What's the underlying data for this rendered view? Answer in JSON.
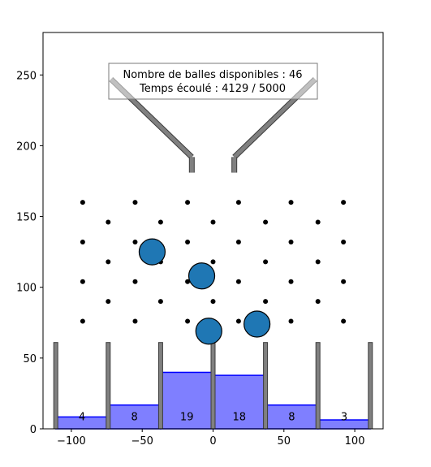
{
  "chart_data": {
    "type": "bar",
    "title": "",
    "xlabel": "",
    "ylabel": "",
    "xlim": [
      -120,
      120
    ],
    "ylim": [
      0,
      280
    ],
    "xticks": [
      -100,
      -50,
      0,
      50,
      100
    ],
    "yticks": [
      0,
      50,
      100,
      150,
      200,
      250
    ],
    "xtick_labels": [
      "−100",
      "−50",
      "0",
      "50",
      "100"
    ],
    "ytick_labels": [
      "0",
      "50",
      "100",
      "150",
      "200",
      "250"
    ],
    "grid": false,
    "status_box": {
      "line1": "Nombre de balles disponibles :  46",
      "line2": "Temps écoulé :  4129 / 5000"
    },
    "histogram": {
      "color": "#0000ff",
      "bins": [
        {
          "x0": -111,
          "x1": -74,
          "count": 4,
          "label": "4"
        },
        {
          "x0": -74,
          "x1": -37,
          "count": 8,
          "label": "8"
        },
        {
          "x0": -37,
          "x1": 0,
          "count": 19,
          "label": "19"
        },
        {
          "x0": 0,
          "x1": 37,
          "count": 18,
          "label": "18"
        },
        {
          "x0": 37,
          "x1": 74,
          "count": 8,
          "label": "8"
        },
        {
          "x0": 74,
          "x1": 111,
          "count": 3,
          "label": "3"
        }
      ]
    },
    "walls": {
      "x": [
        -111,
        -74,
        -37,
        0,
        37,
        74,
        111
      ],
      "height": 61,
      "color": "#808080"
    },
    "funnel": {
      "color": "#808080",
      "segments": [
        {
          "x0": -72,
          "y0": 247,
          "x1": -15,
          "y1": 192
        },
        {
          "x0": 15,
          "y0": 192,
          "x1": 72,
          "y1": 247
        },
        {
          "x0": -15,
          "y0": 192,
          "x1": -15,
          "y1": 181
        },
        {
          "x0": 15,
          "y0": 192,
          "x1": 15,
          "y1": 181
        }
      ]
    },
    "pegs": {
      "rows": [
        {
          "y": 160,
          "x": [
            -92,
            -55,
            -18,
            18,
            55,
            92
          ]
        },
        {
          "y": 146,
          "x": [
            -74,
            -37,
            0,
            37,
            74
          ]
        },
        {
          "y": 132,
          "x": [
            -92,
            -55,
            -18,
            18,
            55,
            92
          ]
        },
        {
          "y": 118,
          "x": [
            -74,
            -37,
            0,
            37,
            74
          ]
        },
        {
          "y": 104,
          "x": [
            -92,
            -55,
            -18,
            18,
            55,
            92
          ]
        },
        {
          "y": 90,
          "x": [
            -74,
            -37,
            0,
            37,
            74
          ]
        },
        {
          "y": 76,
          "x": [
            -92,
            -55,
            -18,
            18,
            55,
            92
          ]
        }
      ]
    },
    "balls": {
      "color": "#1f77b4",
      "points": [
        {
          "x": -43,
          "y": 125
        },
        {
          "x": -8,
          "y": 108
        },
        {
          "x": -3,
          "y": 69
        },
        {
          "x": 31,
          "y": 74
        }
      ]
    }
  }
}
